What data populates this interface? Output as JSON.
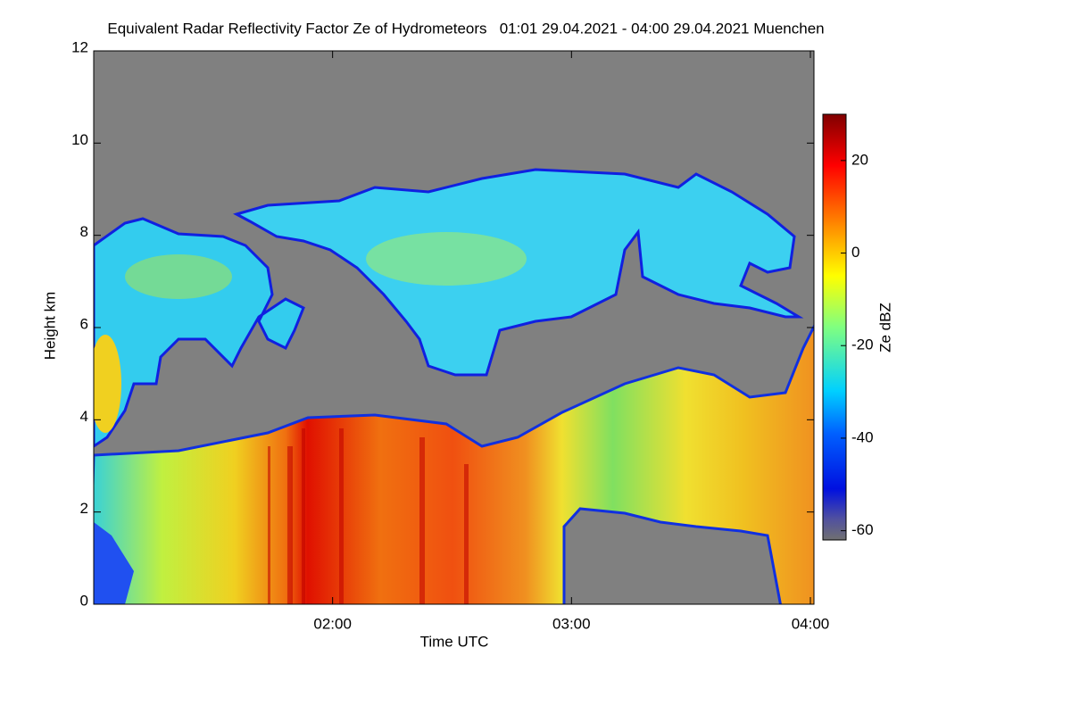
{
  "chart_data": {
    "type": "heatmap",
    "title": "Equivalent Radar Reflectivity Factor Ze of Hydrometeors   01:01 29.04.2021 - 04:00 29.04.2021 Muenchen",
    "xlabel": "Time UTC",
    "ylabel": "Height km",
    "xlim": [
      1.0,
      4.015
    ],
    "xticks": [
      {
        "value": 2,
        "label": "02:00"
      },
      {
        "value": 3,
        "label": "03:00"
      },
      {
        "value": 4,
        "label": "04:00"
      }
    ],
    "ylim": [
      0,
      12
    ],
    "yticks": [
      0,
      2,
      4,
      6,
      8,
      10,
      12
    ],
    "colorbar": {
      "label": "Ze dBZ",
      "lim": [
        -62,
        30
      ],
      "ticks": [
        -60,
        -40,
        -20,
        0,
        20
      ]
    }
  }
}
